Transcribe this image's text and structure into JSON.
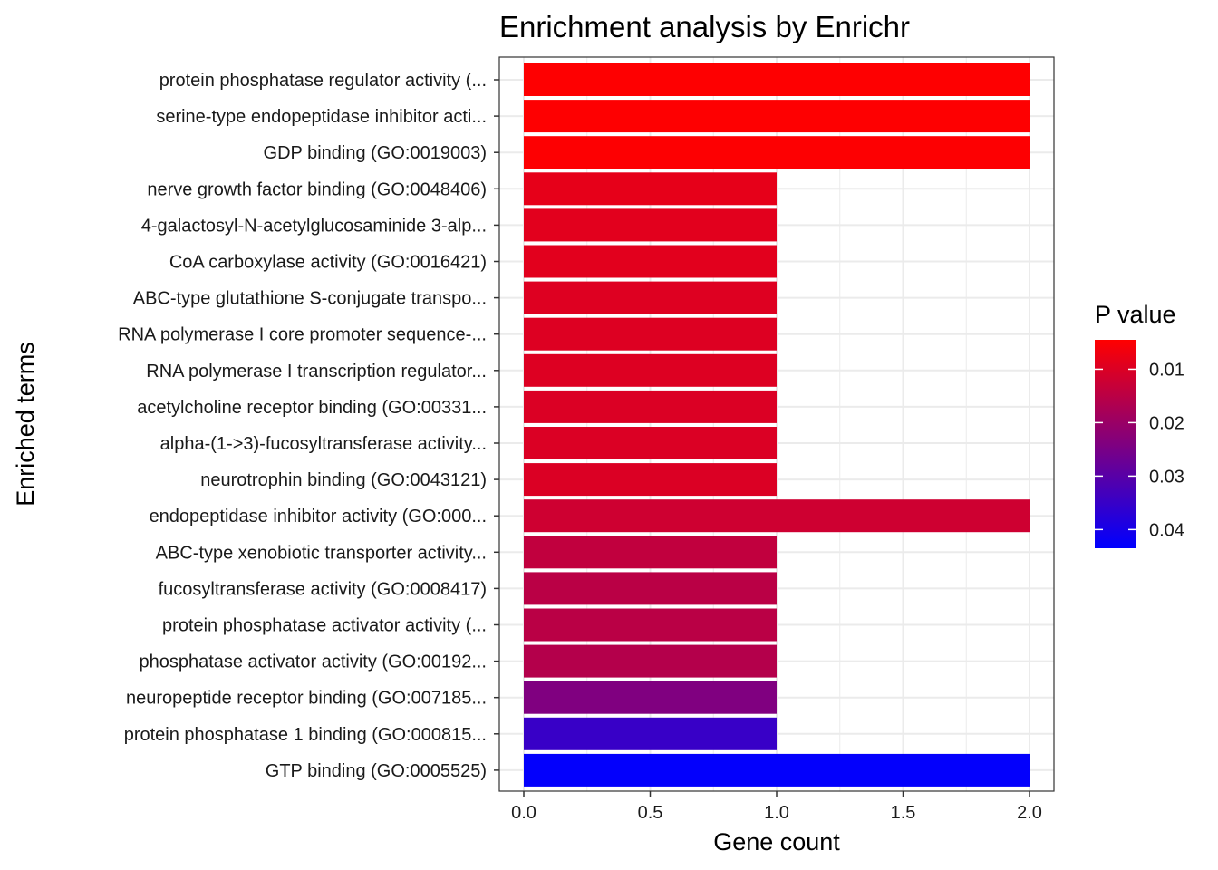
{
  "chart_data": {
    "type": "bar",
    "orientation": "horizontal",
    "title": "Enrichment analysis by Enrichr",
    "xlabel": "Gene count",
    "ylabel": "Enriched terms",
    "xlim": [
      0,
      2
    ],
    "x_ticks": [
      "0.0",
      "0.5",
      "1.0",
      "1.5",
      "2.0"
    ],
    "grid": true,
    "legend": {
      "title": "P value",
      "placement": "right",
      "ticks": [
        0.01,
        0.02,
        0.03,
        0.04
      ],
      "tick_labels": [
        "0.01",
        "0.02",
        "0.03",
        "0.04"
      ],
      "range": [
        0.0045,
        0.0435
      ],
      "low_color": "#ff0000",
      "high_color": "#0000ff"
    },
    "categories": [
      "protein phosphatase regulator activity (...",
      "serine-type endopeptidase inhibitor acti...",
      "GDP binding (GO:0019003)",
      "nerve growth factor binding (GO:0048406)",
      "4-galactosyl-N-acetylglucosaminide 3-alp...",
      "CoA carboxylase activity (GO:0016421)",
      "ABC-type glutathione S-conjugate transpo...",
      "RNA polymerase I core promoter sequence-...",
      "RNA polymerase I transcription regulator...",
      "acetylcholine receptor binding (GO:00331...",
      "alpha-(1->3)-fucosyltransferase activity...",
      "neurotrophin binding (GO:0043121)",
      "endopeptidase inhibitor activity (GO:000...",
      "ABC-type xenobiotic transporter activity...",
      "fucosyltransferase activity (GO:0008417)",
      "protein phosphatase activator activity (...",
      "phosphatase activator activity (GO:00192...",
      "neuropeptide receptor binding (GO:007185...",
      "protein phosphatase 1 binding (GO:000815...",
      "GTP binding (GO:0005525)"
    ],
    "values": [
      2,
      2,
      2,
      1,
      1,
      1,
      1,
      1,
      1,
      1,
      1,
      1,
      2,
      1,
      1,
      1,
      1,
      1,
      1,
      2
    ],
    "p_values": [
      0.0046,
      0.0047,
      0.0048,
      0.0083,
      0.009,
      0.009,
      0.0095,
      0.0097,
      0.0097,
      0.01,
      0.01,
      0.01,
      0.012,
      0.014,
      0.015,
      0.015,
      0.016,
      0.024,
      0.035,
      0.043
    ]
  }
}
